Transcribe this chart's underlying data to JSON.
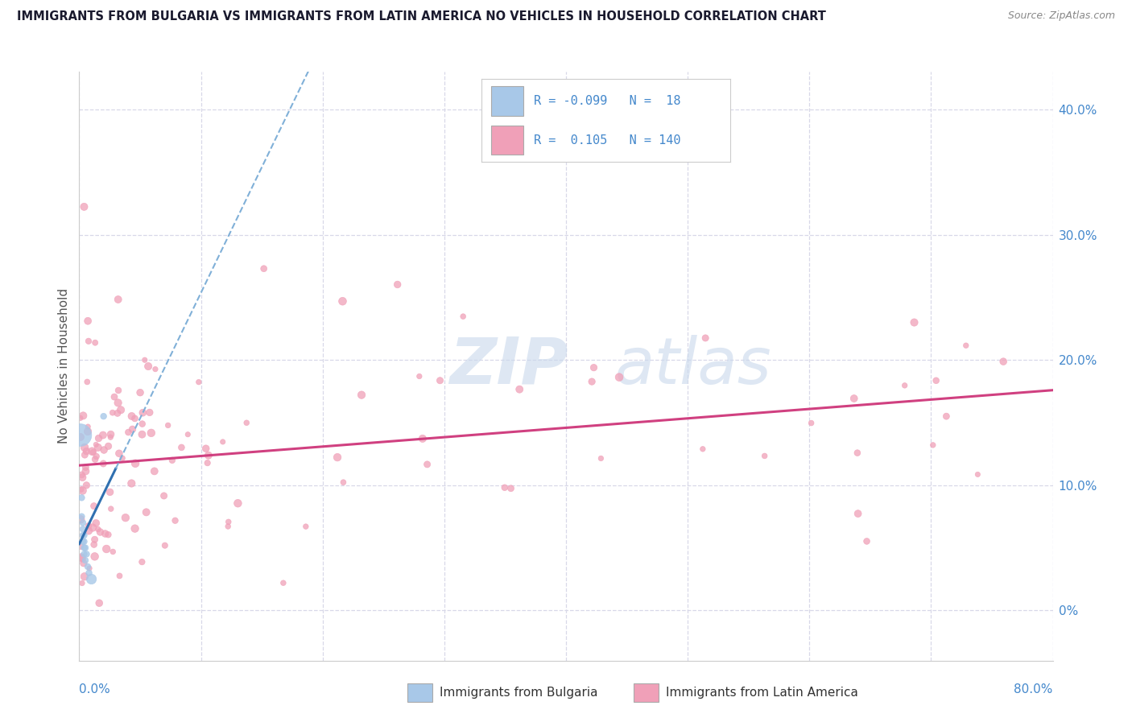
{
  "title": "IMMIGRANTS FROM BULGARIA VS IMMIGRANTS FROM LATIN AMERICA NO VEHICLES IN HOUSEHOLD CORRELATION CHART",
  "source": "Source: ZipAtlas.com",
  "ylabel": "No Vehicles in Household",
  "right_ytick_vals": [
    0.0,
    0.1,
    0.2,
    0.3,
    0.4
  ],
  "right_ytick_labels": [
    "0%",
    "10.0%",
    "20.0%",
    "30.0%",
    "40.0%"
  ],
  "xlim": [
    0.0,
    0.8
  ],
  "ylim": [
    -0.04,
    0.43
  ],
  "legend_r_bulgaria": "-0.099",
  "legend_n_bulgaria": "18",
  "legend_r_latin": "0.105",
  "legend_n_latin": "140",
  "color_bulgaria": "#a8c8e8",
  "color_latin": "#f0a0b8",
  "color_bulgaria_line_solid": "#3070b0",
  "color_bulgaria_line_dashed": "#80b0d8",
  "color_latin_line": "#d04080",
  "bg_color": "#ffffff",
  "grid_color": "#d8d8e8",
  "title_color": "#1a1a2e",
  "axis_label_color": "#4488cc",
  "watermark_color": "#c8d8ec"
}
